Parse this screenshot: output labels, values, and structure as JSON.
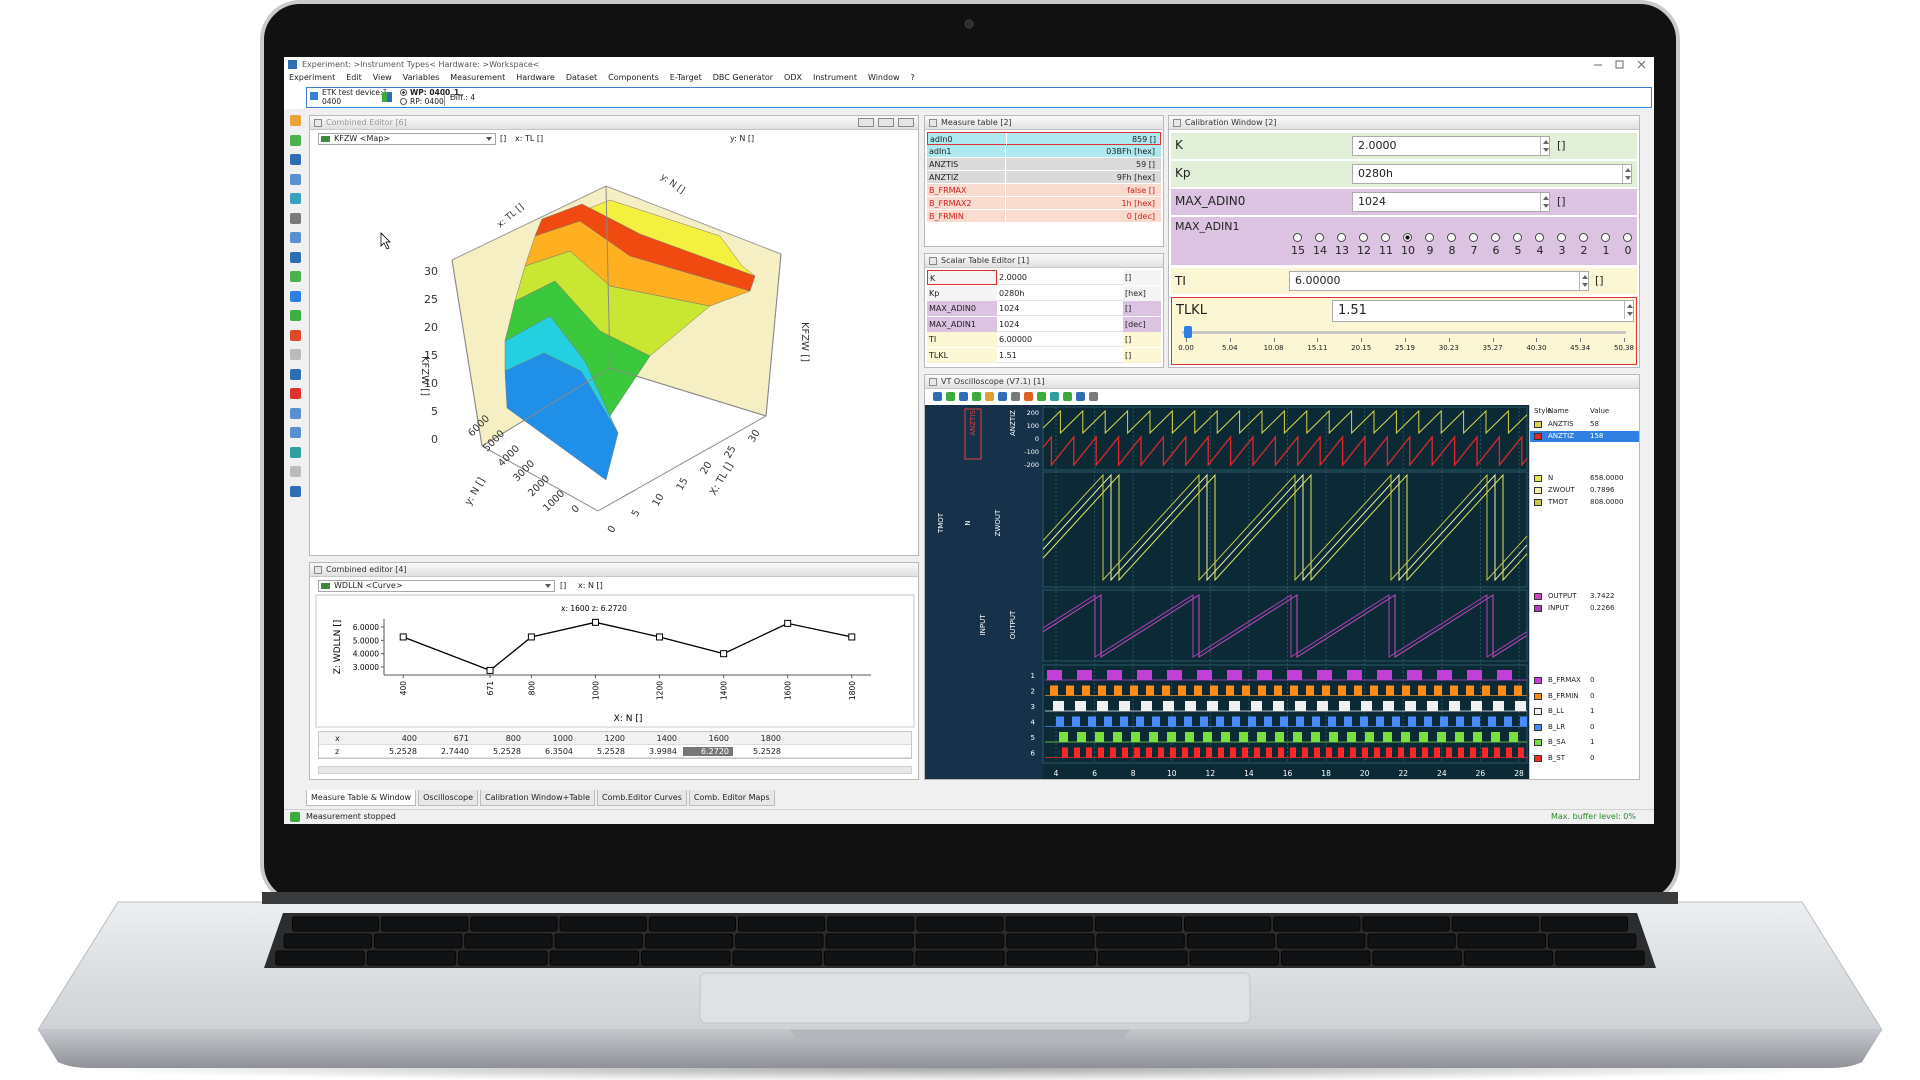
{
  "window": {
    "title": "Experiment: >Instrument Types< Hardware: >Workspace<",
    "menu": [
      "Experiment",
      "Edit",
      "View",
      "Variables",
      "Measurement",
      "Hardware",
      "Dataset",
      "Components",
      "E-Target",
      "DBC Generator",
      "ODX",
      "Instrument",
      "Window",
      "?"
    ]
  },
  "toolbar": {
    "device": "ETK test device:1",
    "device_id": "0400",
    "wp": "WP: 0400_1",
    "rp": "RP: 0400",
    "diff": "Diff.: 4"
  },
  "map_editor": {
    "title": "Combined Editor [6]",
    "variable": "KFZW <Map>",
    "unit": "[]",
    "x_axis": "x: TL []",
    "y_axis": "y: N []",
    "z_label": "KFZW []",
    "z_ticks": [
      "30",
      "25",
      "20",
      "15",
      "10",
      "5",
      "0"
    ],
    "n_ticks": [
      "6000",
      "5000",
      "4000",
      "3000",
      "2000",
      "1000",
      "0"
    ],
    "tl_label": "X: TL []",
    "tl_ticks": [
      "0",
      "5",
      "10",
      "15",
      "20",
      "25",
      "30"
    ]
  },
  "curve_editor": {
    "title": "Combined editor [4]",
    "variable": "WDLLN <Curve>",
    "unit": "[]",
    "x_axis": "x: N []",
    "row_labels": [
      "x",
      "z"
    ]
  },
  "chart_data": {
    "type": "line",
    "x": [
      400,
      671,
      800,
      1000,
      1200,
      1400,
      1600,
      1800
    ],
    "values": [
      5.2528,
      2.744,
      5.2528,
      6.3504,
      5.2528,
      3.9984,
      6.272,
      5.2528
    ],
    "value_labels": [
      "5.2528",
      "2.7440",
      "5.2528",
      "6.3504",
      "5.2528",
      "3.9984",
      "6.2720",
      "5.2528"
    ],
    "xlim": [
      340,
      1860
    ],
    "ylim": [
      2.4,
      6.6
    ],
    "xticks": [
      400,
      671,
      800,
      1000,
      1200,
      1400,
      1600,
      1800
    ],
    "yticks": [
      {
        "value": 3,
        "label": "3.0000"
      },
      {
        "value": 4,
        "label": "4.0000"
      },
      {
        "value": 5,
        "label": "5.0000"
      },
      {
        "value": 6,
        "label": "6.0000"
      }
    ],
    "x_label": "X: N []",
    "y_label": "Z: WDLLN []",
    "annotation": "x: 1600 z: 6.2720",
    "color": "#000000"
  },
  "measure_table": {
    "title": "Measure table [2]",
    "rows": [
      [
        "adIn0",
        "859 []"
      ],
      [
        "adIn1",
        "03BFh [hex]"
      ],
      [
        "ANZTIS",
        "59 []"
      ],
      [
        "ANZTIZ",
        "9Fh [hex]"
      ],
      [
        "B_FRMAX",
        "false []"
      ],
      [
        "B_FRMAX2",
        "1h [hex]"
      ],
      [
        "B_FRMIN",
        "0 [dec]"
      ]
    ]
  },
  "scalar_table": {
    "title": "Scalar Table Editor [1]",
    "rows": [
      [
        "K",
        "2.0000",
        "[]"
      ],
      [
        "Kp",
        "0280h",
        "[hex]"
      ],
      [
        "MAX_ADIN0",
        "1024",
        "[]"
      ],
      [
        "MAX_ADIN1",
        "1024",
        "[dec]"
      ],
      [
        "TI",
        "6.00000",
        "[]"
      ],
      [
        "TLKL",
        "1.51",
        "[]"
      ]
    ]
  },
  "calibration": {
    "title": "Calibration Window [2]",
    "rows": [
      {
        "name": "K",
        "value": "2.0000",
        "unit": "[]"
      },
      {
        "name": "Kp",
        "value": "0280h"
      },
      {
        "name": "MAX_ADIN0",
        "value": "1024",
        "unit": "[]"
      }
    ],
    "bitfield": {
      "name": "MAX_ADIN1",
      "bits": [
        "15",
        "14",
        "13",
        "12",
        "11",
        "10",
        "9",
        "8",
        "7",
        "6",
        "5",
        "4",
        "3",
        "2",
        "1",
        "0"
      ]
    },
    "ti": {
      "name": "TI",
      "value": "6.00000",
      "unit": "[]"
    },
    "tlkl": {
      "name": "TLKL",
      "value": "1.51",
      "ticks": [
        "0.00",
        "5.04",
        "10.08",
        "15.11",
        "20.15",
        "25.19",
        "30.23",
        "35.27",
        "40.30",
        "45.34",
        "50.38"
      ]
    }
  },
  "oscilloscope": {
    "title": "VT Oscilloscope (V7.1) [1]",
    "legend_headers": [
      "Style",
      "Name",
      "Value"
    ],
    "signals": [
      {
        "name": "ANZTIS",
        "value": "58",
        "color": "#d4d44c"
      },
      {
        "name": "ANZTIZ",
        "value": "158",
        "color": "#e0282a"
      },
      {
        "name": "N",
        "value": "658.0000",
        "color": "#e6e65a"
      },
      {
        "name": "ZWOUT",
        "value": "0.7896",
        "color": "#f0f0b0"
      },
      {
        "name": "TMOT",
        "value": "808.0000",
        "color": "#c8c84a"
      },
      {
        "name": "OUTPUT",
        "value": "3.7422",
        "color": "#d048c8"
      },
      {
        "name": "INPUT",
        "value": "0.2266",
        "color": "#b040b8"
      },
      {
        "name": "B_FRMAX",
        "value": "0",
        "color": "#c040d8"
      },
      {
        "name": "B_FRMIN",
        "value": "0",
        "color": "#ff8c1a"
      },
      {
        "name": "B_LL",
        "value": "1",
        "color": "#f0f0f0"
      },
      {
        "name": "B_LR",
        "value": "0",
        "color": "#4a8cff"
      },
      {
        "name": "B_SA",
        "value": "1",
        "color": "#78e040"
      },
      {
        "name": "B_ST",
        "value": "0",
        "color": "#ff2828"
      }
    ],
    "time_ticks": [
      4,
      6,
      8,
      10,
      12,
      14,
      16,
      18,
      20,
      22,
      24,
      26,
      28
    ],
    "anz_ticks": [
      "200",
      "100",
      "0",
      "-100",
      "-200"
    ],
    "axis_labels": [
      "ANZTIS",
      "ANZTIZ",
      "TMOT",
      "N",
      "ZWOUT",
      "INPUT",
      "OUTPUT"
    ],
    "digital_ticks": [
      "1",
      "2",
      "3",
      "4",
      "5",
      "6"
    ]
  },
  "tabs": [
    "Measure Table & Window",
    "Oscilloscope",
    "Calibration Window+Table",
    "Comb.Editor Curves",
    "Comb. Editor Maps"
  ],
  "status": {
    "message": "Measurement stopped",
    "buffer": "Max. buffer level: 0%"
  }
}
